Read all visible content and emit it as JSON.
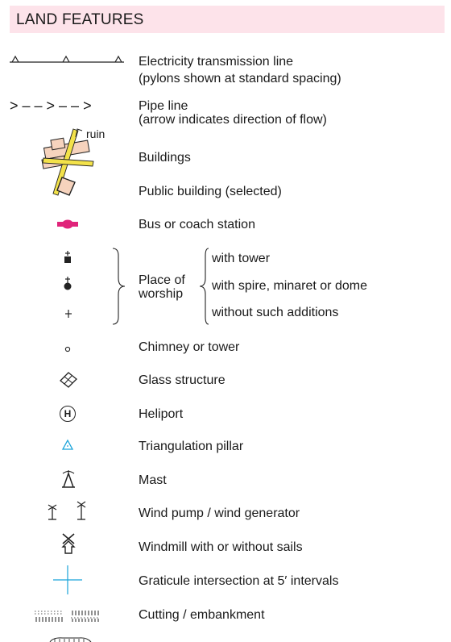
{
  "section_title": "LAND FEATURES",
  "legend": {
    "electricity_line": {
      "label": "Electricity transmission line",
      "sublabel": "(pylons shown at standard spacing)"
    },
    "pipe_line": {
      "label": "Pipe line",
      "sublabel": "(arrow indicates direction of flow)",
      "symbol_text": "> – – > – – >"
    },
    "ruin_label": "ruin",
    "buildings": "Buildings",
    "public_building": "Public building (selected)",
    "bus_station": "Bus or coach station",
    "place_of_worship": {
      "label": "Place of worship",
      "variants": [
        "with tower",
        "with spire, minaret or dome",
        "without such additions"
      ]
    },
    "chimney": "Chimney or tower",
    "glass_structure": "Glass structure",
    "heliport": "Heliport",
    "heliport_symbol": "H",
    "triangulation": "Triangulation pillar",
    "mast": "Mast",
    "wind_pump": "Wind pump / wind generator",
    "windmill": "Windmill with or without sails",
    "graticule": "Graticule intersection at 5′ intervals",
    "cutting": "Cutting / embankment"
  },
  "colors": {
    "header_bg": "#fde3ea",
    "building_fill": "#f6d3bd",
    "road_yellow": "#f3e24a",
    "bus_magenta": "#e0247a",
    "cyan": "#19a3d9"
  }
}
